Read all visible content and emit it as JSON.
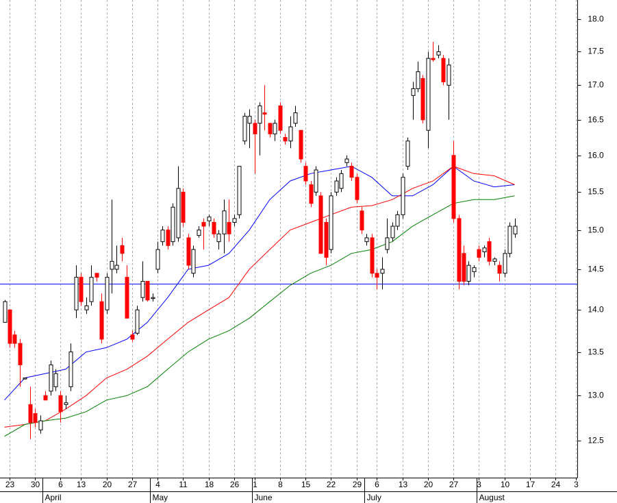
{
  "chart_data": {
    "type": "candlestick",
    "log_scale": true,
    "grid": true,
    "up_color": "#ffffff",
    "down_color": "#ff0000",
    "ylim": [
      12.11,
      18.3
    ],
    "yticks": [
      12.5,
      {
        "value": 13,
        "label": "13.0"
      },
      13.5,
      {
        "value": 14,
        "label": "14.0"
      },
      14.5,
      {
        "value": 15,
        "label": "15.0"
      },
      15.5,
      {
        "value": 16,
        "label": "16.0"
      },
      16.5,
      {
        "value": 17,
        "label": "17.0"
      },
      17.5,
      {
        "value": 18,
        "label": "18.0"
      }
    ],
    "categories": [
      null,
      "23",
      null,
      null,
      null,
      null,
      "30",
      null,
      null,
      null,
      null,
      "6",
      null,
      null,
      null,
      "13",
      null,
      null,
      null,
      null,
      "20",
      null,
      null,
      null,
      null,
      "27",
      null,
      null,
      null,
      null,
      "4",
      null,
      null,
      null,
      null,
      "11",
      null,
      null,
      null,
      null,
      "18",
      null,
      null,
      null,
      null,
      "26",
      null,
      null,
      null,
      "1",
      null,
      null,
      null,
      null,
      "8",
      null,
      null,
      null,
      null,
      "15",
      null,
      null,
      null,
      null,
      "22",
      null,
      null,
      null,
      null,
      "29",
      null,
      null,
      null,
      "6",
      null,
      null,
      null,
      null,
      "13",
      null,
      null,
      null,
      null,
      "20",
      null,
      null,
      null,
      null,
      "27",
      null,
      null,
      null,
      null,
      "3",
      null,
      null,
      null,
      null,
      "10",
      null,
      null,
      null,
      null,
      "17",
      null,
      null,
      null,
      null,
      "24",
      null,
      null,
      null,
      "3"
    ],
    "months": [
      null,
      null,
      null,
      null,
      null,
      null,
      null,
      null,
      "April",
      null,
      null,
      null,
      null,
      null,
      null,
      null,
      null,
      null,
      null,
      null,
      null,
      null,
      null,
      null,
      null,
      null,
      null,
      null,
      null,
      "May",
      null,
      null,
      null,
      null,
      null,
      null,
      null,
      null,
      null,
      null,
      null,
      null,
      null,
      null,
      null,
      null,
      null,
      null,
      null,
      "June",
      null,
      null,
      null,
      null,
      null,
      null,
      null,
      null,
      null,
      null,
      null,
      null,
      null,
      null,
      null,
      null,
      null,
      null,
      null,
      null,
      null,
      "July",
      null,
      null,
      null,
      null,
      null,
      null,
      null,
      null,
      null,
      null,
      null,
      null,
      null,
      null,
      null,
      null,
      null,
      null,
      null,
      null,
      null,
      "August",
      null,
      null,
      null,
      null,
      null,
      null,
      null,
      null,
      null,
      null,
      null,
      null,
      null,
      null,
      null,
      null,
      null,
      null,
      null
    ],
    "open": [
      13.85,
      14.0,
      13.7,
      13.6,
      13.2,
      12.9,
      12.8,
      12.62,
      13.0,
      13.05,
      13.1,
      13.0,
      12.9,
      13.1,
      14.0,
      14.4,
      14.0,
      14.1,
      14.45,
      14.1,
      14.0,
      14.5,
      14.5,
      14.8,
      14.4,
      13.7,
      13.72,
      14.15,
      14.35,
      14.15,
      14.5,
      14.85,
      15.0,
      14.85,
      14.9,
      15.5,
      14.9,
      14.45,
      14.93,
      15.1,
      15.12,
      15.1,
      14.85,
      14.95,
      15.1,
      15.1,
      15.2,
      16.2,
      16.45,
      16.45,
      16.45,
      16.6,
      16.45,
      16.3,
      16.7,
      16.25,
      16.2,
      16.45,
      16.35,
      15.85,
      15.6,
      15.5,
      15.45,
      15.1,
      14.75,
      15.5,
      15.55,
      15.9,
      15.85,
      15.7,
      15.25,
      14.85,
      14.9,
      14.45,
      14.45,
      14.75,
      14.9,
      15.05,
      15.2,
      15.85,
      16.85,
      16.95,
      17.1,
      16.35,
      17.4,
      17.45,
      17.4,
      17.0,
      16.0,
      15.15,
      14.7,
      14.35,
      14.47,
      14.75,
      14.72,
      14.85,
      14.6,
      14.55,
      14.45,
      14.7,
      14.95,
      null,
      null,
      null,
      null,
      null,
      null,
      null,
      null,
      null,
      null,
      null,
      null
    ],
    "high": [
      14.12,
      14.0,
      13.75,
      13.65,
      13.2,
      13.1,
      12.85,
      12.78,
      13.05,
      13.4,
      13.3,
      13.05,
      13.0,
      13.6,
      14.55,
      14.45,
      14.15,
      14.55,
      14.45,
      14.2,
      14.45,
      15.4,
      14.8,
      14.9,
      14.55,
      13.75,
      14.05,
      14.6,
      14.35,
      14.2,
      14.85,
      15.05,
      15.05,
      15.35,
      15.85,
      15.55,
      14.95,
      14.8,
      15.05,
      15.15,
      15.2,
      15.15,
      15.0,
      15.4,
      15.4,
      15.2,
      15.85,
      16.6,
      16.65,
      16.5,
      16.75,
      17.0,
      16.45,
      16.5,
      16.75,
      16.3,
      16.55,
      16.7,
      16.35,
      15.9,
      15.65,
      15.85,
      15.5,
      15.15,
      15.5,
      15.7,
      15.8,
      16.0,
      15.9,
      15.75,
      15.3,
      14.95,
      14.95,
      14.5,
      14.65,
      15.15,
      15.1,
      15.25,
      15.75,
      16.25,
      17.05,
      17.35,
      17.15,
      17.5,
      17.65,
      17.6,
      17.45,
      17.4,
      16.2,
      15.2,
      14.8,
      14.6,
      14.55,
      14.8,
      14.8,
      14.9,
      14.65,
      14.6,
      14.75,
      15.1,
      15.15,
      null,
      null,
      null,
      null,
      null,
      null,
      null,
      null,
      null,
      null,
      null,
      null
    ],
    "low": [
      13.85,
      13.55,
      13.55,
      13.1,
      13.18,
      12.52,
      12.65,
      12.58,
      12.95,
      13.0,
      13.05,
      12.7,
      12.85,
      13.05,
      13.9,
      14.05,
      13.95,
      14.05,
      14.35,
      13.6,
      13.95,
      14.2,
      14.45,
      14.6,
      13.9,
      13.62,
      13.7,
      14.1,
      14.1,
      14.1,
      14.45,
      14.8,
      14.75,
      14.8,
      14.85,
      15.05,
      14.5,
      14.4,
      14.9,
      14.75,
      15.05,
      14.9,
      14.75,
      14.7,
      14.85,
      15.05,
      15.15,
      16.15,
      16.1,
      15.75,
      16.0,
      16.35,
      16.25,
      16.2,
      16.3,
      16.15,
      16.1,
      16.4,
      15.9,
      15.6,
      15.3,
      15.45,
      14.7,
      14.55,
      14.7,
      15.45,
      15.5,
      15.85,
      15.65,
      15.35,
      14.95,
      14.8,
      14.4,
      14.25,
      14.25,
      14.7,
      14.85,
      15.0,
      15.15,
      15.8,
      16.5,
      16.9,
      16.45,
      16.1,
      17.35,
      17.4,
      17.0,
      16.5,
      15.1,
      14.25,
      14.3,
      14.3,
      14.4,
      14.6,
      14.65,
      14.55,
      14.55,
      14.35,
      14.4,
      14.65,
      14.9,
      null,
      null,
      null,
      null,
      null,
      null,
      null,
      null,
      null,
      null,
      null,
      null
    ],
    "close": [
      14.1,
      13.6,
      13.6,
      13.35,
      13.2,
      12.7,
      12.7,
      12.72,
      12.95,
      13.35,
      13.25,
      12.82,
      12.92,
      13.5,
      14.4,
      14.1,
      14.05,
      14.4,
      14.4,
      13.65,
      14.4,
      14.6,
      14.55,
      14.7,
      13.9,
      13.65,
      14.0,
      14.35,
      14.12,
      14.15,
      14.75,
      15.0,
      14.8,
      15.3,
      15.55,
      15.1,
      14.55,
      14.75,
      15.0,
      15.05,
      15.17,
      14.95,
      14.95,
      15.25,
      14.95,
      15.15,
      15.85,
      16.55,
      16.55,
      16.3,
      16.7,
      16.58,
      16.3,
      16.45,
      16.35,
      16.2,
      16.4,
      16.6,
      15.95,
      15.65,
      15.35,
      15.8,
      14.7,
      14.65,
      15.45,
      15.65,
      15.75,
      15.95,
      15.7,
      15.4,
      15.0,
      14.9,
      14.45,
      14.4,
      14.5,
      14.9,
      15.05,
      15.2,
      15.7,
      16.2,
      16.95,
      17.2,
      16.5,
      17.4,
      17.38,
      17.5,
      17.05,
      17.3,
      15.15,
      14.35,
      14.35,
      14.55,
      14.52,
      14.65,
      14.77,
      14.6,
      14.63,
      14.45,
      14.7,
      15.05,
      15.05,
      null,
      null,
      null,
      null,
      null,
      null,
      null,
      null,
      null,
      null,
      null,
      null
    ],
    "lines": [
      {
        "color": "#0000ff",
        "x": [
          0,
          4,
          8,
          12,
          16,
          20,
          24,
          28,
          32,
          36,
          40,
          44,
          48,
          52,
          56,
          60,
          64,
          68,
          72,
          76,
          80,
          84,
          88,
          92,
          96,
          100
        ],
        "values": [
          12.95,
          13.2,
          13.25,
          13.3,
          13.5,
          13.55,
          13.65,
          13.85,
          14.15,
          14.5,
          14.55,
          14.7,
          15.0,
          15.4,
          15.65,
          15.75,
          15.8,
          15.85,
          15.7,
          15.45,
          15.45,
          15.6,
          15.85,
          15.65,
          15.57,
          15.6
        ]
      },
      {
        "color": "#ff0000",
        "x": [
          0,
          4,
          8,
          12,
          16,
          20,
          24,
          28,
          32,
          36,
          40,
          44,
          48,
          52,
          56,
          60,
          64,
          68,
          72,
          76,
          80,
          84,
          88,
          92,
          96,
          100
        ],
        "values": [
          12.65,
          12.68,
          12.72,
          12.85,
          13.0,
          13.2,
          13.3,
          13.45,
          13.65,
          13.85,
          14.0,
          14.15,
          14.5,
          14.75,
          15.0,
          15.1,
          15.2,
          15.3,
          15.32,
          15.4,
          15.55,
          15.65,
          15.85,
          15.75,
          15.72,
          15.6
        ]
      },
      {
        "color": "#008000",
        "x": [
          0,
          4,
          8,
          12,
          16,
          20,
          24,
          28,
          32,
          36,
          40,
          44,
          48,
          52,
          56,
          60,
          64,
          68,
          72,
          76,
          80,
          84,
          88,
          92,
          96,
          100
        ],
        "values": [
          12.55,
          12.68,
          12.72,
          12.75,
          12.82,
          12.95,
          13.0,
          13.1,
          13.3,
          13.5,
          13.65,
          13.75,
          13.9,
          14.1,
          14.3,
          14.45,
          14.55,
          14.7,
          14.75,
          14.85,
          15.05,
          15.2,
          15.35,
          15.4,
          15.4,
          15.45
        ]
      }
    ],
    "hlines": [
      {
        "value": 14.32,
        "color": "#0000ff"
      }
    ]
  }
}
